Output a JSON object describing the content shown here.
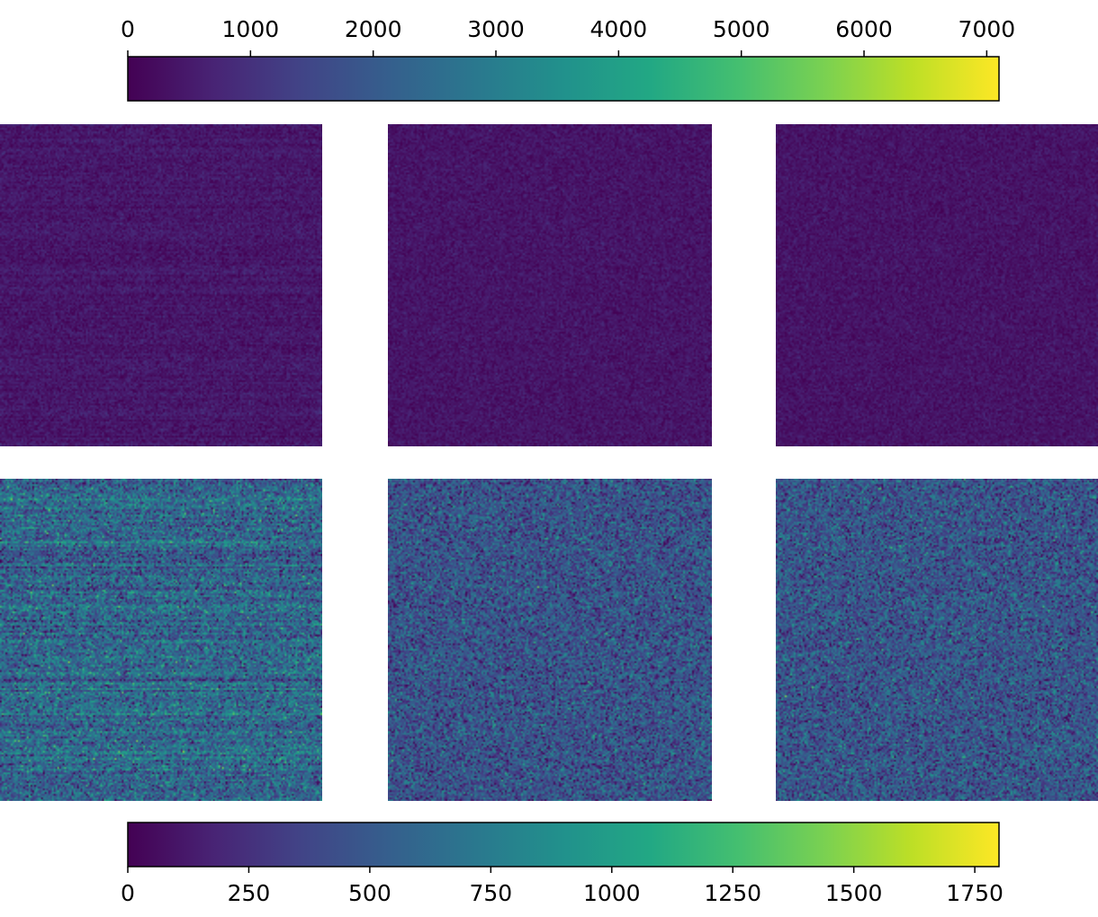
{
  "chart_data": {
    "type": "heatmap",
    "layout": "2 rows x 3 panels",
    "colormap": "viridis",
    "colorbars": [
      {
        "id": "top",
        "range": [
          0,
          7100
        ],
        "ticks": [
          0,
          1000,
          2000,
          3000,
          4000,
          5000,
          6000,
          7000
        ],
        "tick_labels": [
          "0",
          "1000",
          "2000",
          "3000",
          "4000",
          "5000",
          "6000",
          "7000"
        ],
        "tick_position": "above"
      },
      {
        "id": "bottom",
        "range": [
          0,
          1800
        ],
        "ticks": [
          0,
          250,
          500,
          750,
          1000,
          1250,
          1500,
          1750
        ],
        "tick_labels": [
          "0",
          "250",
          "500",
          "750",
          "1000",
          "1250",
          "1500",
          "1750"
        ],
        "tick_position": "below"
      }
    ],
    "panels": [
      {
        "row": 0,
        "col": 0,
        "colorbar": "top",
        "approx_mean": 450,
        "approx_noise": 230,
        "banding": true
      },
      {
        "row": 0,
        "col": 1,
        "colorbar": "top",
        "approx_mean": 400,
        "approx_noise": 210,
        "banding": false
      },
      {
        "row": 0,
        "col": 2,
        "colorbar": "top",
        "approx_mean": 380,
        "approx_noise": 200,
        "banding": false
      },
      {
        "row": 1,
        "col": 0,
        "colorbar": "bottom",
        "approx_mean": 600,
        "approx_noise": 230,
        "banding": true
      },
      {
        "row": 1,
        "col": 1,
        "colorbar": "bottom",
        "approx_mean": 470,
        "approx_noise": 210,
        "banding": false
      },
      {
        "row": 1,
        "col": 2,
        "colorbar": "bottom",
        "approx_mean": 480,
        "approx_noise": 210,
        "banding": false
      }
    ],
    "title": "",
    "xlabel": "",
    "ylabel": "",
    "grid": false
  }
}
